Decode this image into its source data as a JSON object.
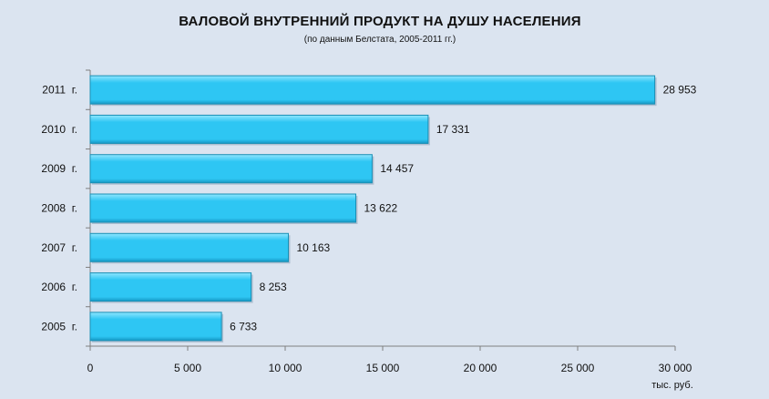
{
  "chart_data": {
    "type": "bar",
    "orientation": "horizontal",
    "title": "ВАЛОВОЙ ВНУТРЕННИЙ ПРОДУКТ НА ДУШУ НАСЕЛЕНИЯ",
    "subtitle": "(по данным Белстата, 2005-2011 гг.)",
    "categories": [
      "2011  г.",
      "2010  г.",
      "2009  г.",
      "2008  г.",
      "2007  г.",
      "2006  г.",
      "2005  г."
    ],
    "values": [
      28953,
      17331,
      14457,
      13622,
      10163,
      8253,
      6733
    ],
    "value_labels": [
      "28 953",
      "17 331",
      "14 457",
      "13 622",
      "10 163",
      "8 253",
      "6 733"
    ],
    "xlim": [
      0,
      30000
    ],
    "x_ticks": [
      0,
      5000,
      10000,
      15000,
      20000,
      25000,
      30000
    ],
    "x_tick_labels": [
      "0",
      "5 000",
      "10 000",
      "15 000",
      "20 000",
      "25 000",
      "30 000"
    ],
    "unit_label": "тыс. руб.",
    "grid": false,
    "bar_color": "#2ec6f3",
    "bar_edge_color": "#1a8fb5",
    "background_color": "#dbe4f0"
  }
}
